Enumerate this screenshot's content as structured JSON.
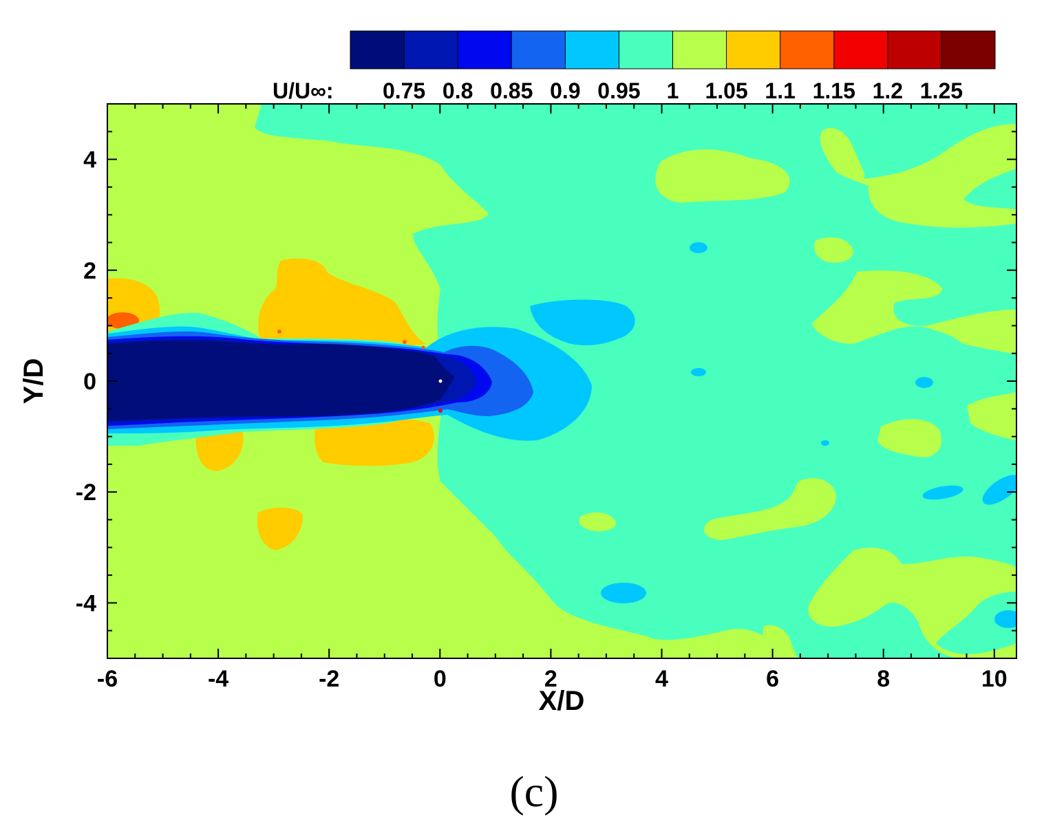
{
  "chart_data": {
    "type": "heatmap",
    "title": "",
    "xlabel": "X/D",
    "ylabel": "Y/D",
    "xlim": [
      -6,
      10.4
    ],
    "ylim": [
      -5,
      5
    ],
    "x_ticks": [
      "-6",
      "-4",
      "-2",
      "0",
      "2",
      "4",
      "6",
      "8",
      "10"
    ],
    "y_ticks": [
      "-4",
      "-2",
      "0",
      "2",
      "4"
    ],
    "colorbar": {
      "title": "U/U∞:",
      "levels": [
        "0.75",
        "0.8",
        "0.85",
        "0.9",
        "0.95",
        "1",
        "1.05",
        "1.1",
        "1.15",
        "1.2",
        "1.25"
      ],
      "colors": [
        "#000c7a",
        "#0016b0",
        "#0008f0",
        "#1464f2",
        "#00c8ff",
        "#48ffbe",
        "#b8ff4c",
        "#ffcc00",
        "#ff6000",
        "#f20000",
        "#bc0000",
        "#7c0000"
      ]
    },
    "regions": [
      {
        "level": "<0.75",
        "desc": "wake core",
        "x_range": [
          -6,
          0.4
        ],
        "y_range": [
          -0.75,
          0.75
        ]
      },
      {
        "level": "0.75-0.85",
        "desc": "downstream deficit",
        "x_range": [
          0.2,
          1.7
        ],
        "y_range": [
          -0.6,
          0.6
        ]
      },
      {
        "level": "0.9-0.95",
        "desc": "downstream deficit edge",
        "x_range": [
          0,
          2.8
        ],
        "y_range": [
          -1.0,
          1.0
        ]
      },
      {
        "level": "1.05-1.1",
        "desc": "upper overspeed lobe",
        "x_range": [
          -3.3,
          -0.5
        ],
        "y_range": [
          0.7,
          2.2
        ]
      },
      {
        "level": "1.05-1.1",
        "desc": "lower overspeed lobe",
        "x_range": [
          -2.3,
          -0.4
        ],
        "y_range": [
          -1.6,
          -0.7
        ]
      }
    ]
  },
  "caption": "(c)"
}
